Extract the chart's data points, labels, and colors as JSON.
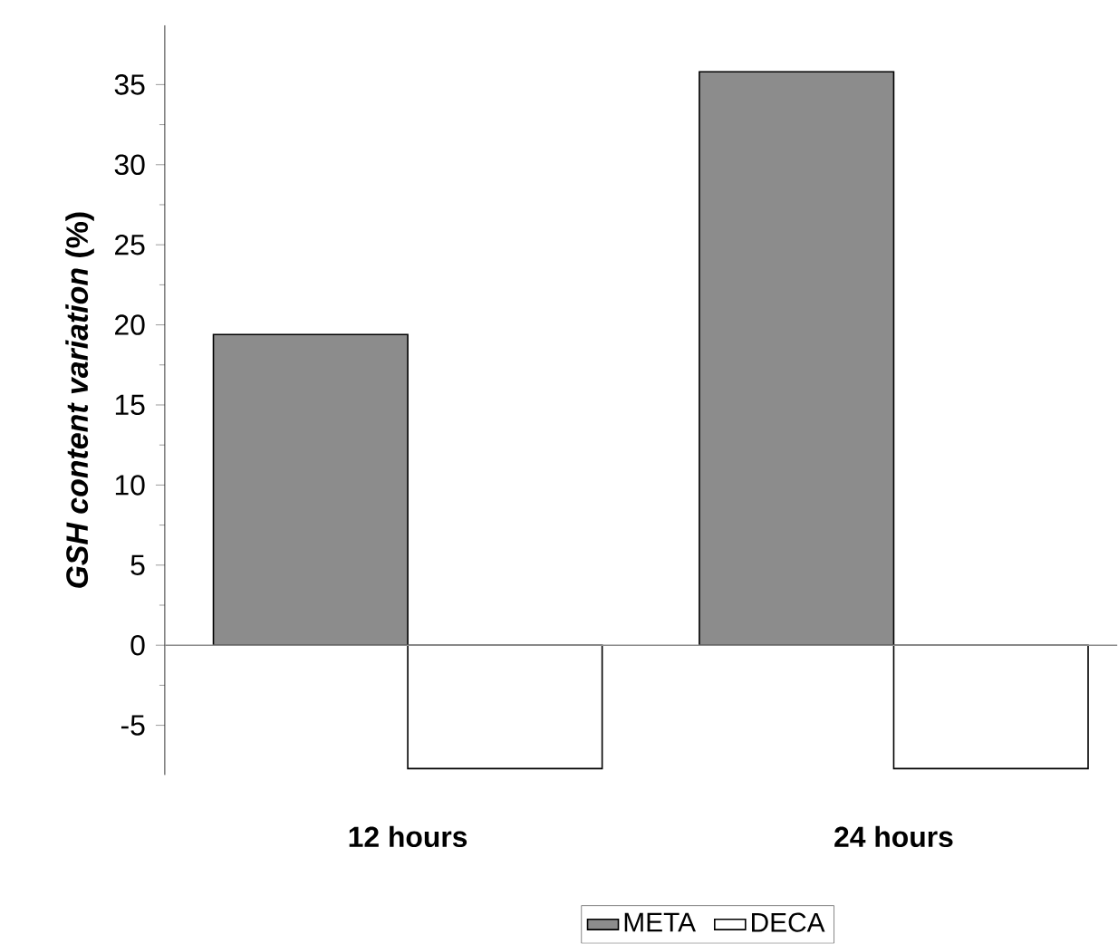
{
  "chart_data": {
    "type": "bar",
    "ylabel": "*GSH content variation* (%)",
    "categories": [
      "12 hours",
      "24 hours"
    ],
    "series": [
      {
        "name": "META",
        "color": "#8c8c8c",
        "values": [
          19.4,
          35.8
        ]
      },
      {
        "name": "DECA",
        "color": "#ffffff",
        "values": [
          -7.7,
          -7.7
        ]
      }
    ],
    "ylim": [
      -8.1,
      38.7
    ],
    "yticks": [
      -5,
      0,
      5,
      10,
      15,
      20,
      25,
      30,
      35
    ],
    "legend": "bottom",
    "ref_lines": [
      {
        "axis": "y",
        "value": 0,
        "color": "#8c8c8c"
      }
    ]
  }
}
